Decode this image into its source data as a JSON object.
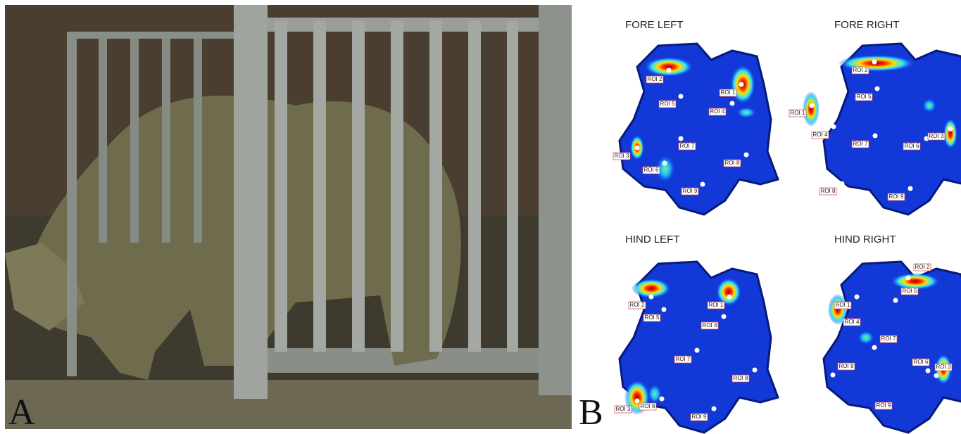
{
  "panels": [
    {
      "label": "A"
    },
    {
      "label": "B",
      "heatmaps": [
        {
          "title": "FORE LEFT",
          "rois": [
            "ROI 2",
            "ROI 1",
            "ROI 5",
            "ROI 4",
            "ROI 7",
            "ROI 3",
            "ROI 8",
            "ROI 6",
            "ROI 9"
          ]
        },
        {
          "title": "FORE RIGHT",
          "rois": [
            "ROI 2",
            "ROI 5",
            "ROI 1",
            "ROI 4",
            "ROI 7",
            "ROI 6",
            "ROI 3",
            "ROI 8",
            "ROI 9"
          ]
        },
        {
          "title": "HIND LEFT",
          "rois": [
            "ROI 2",
            "ROI 1",
            "ROI 5",
            "ROI 4",
            "ROI 7",
            "ROI 8",
            "ROI 3",
            "ROI 6",
            "ROI 9"
          ]
        },
        {
          "title": "HIND RIGHT",
          "rois": [
            "ROI 2",
            "ROI 5",
            "ROI 1",
            "ROI 4",
            "ROI 7",
            "ROI 6",
            "ROI 3",
            "ROI 8",
            "ROI 9"
          ]
        }
      ]
    }
  ]
}
